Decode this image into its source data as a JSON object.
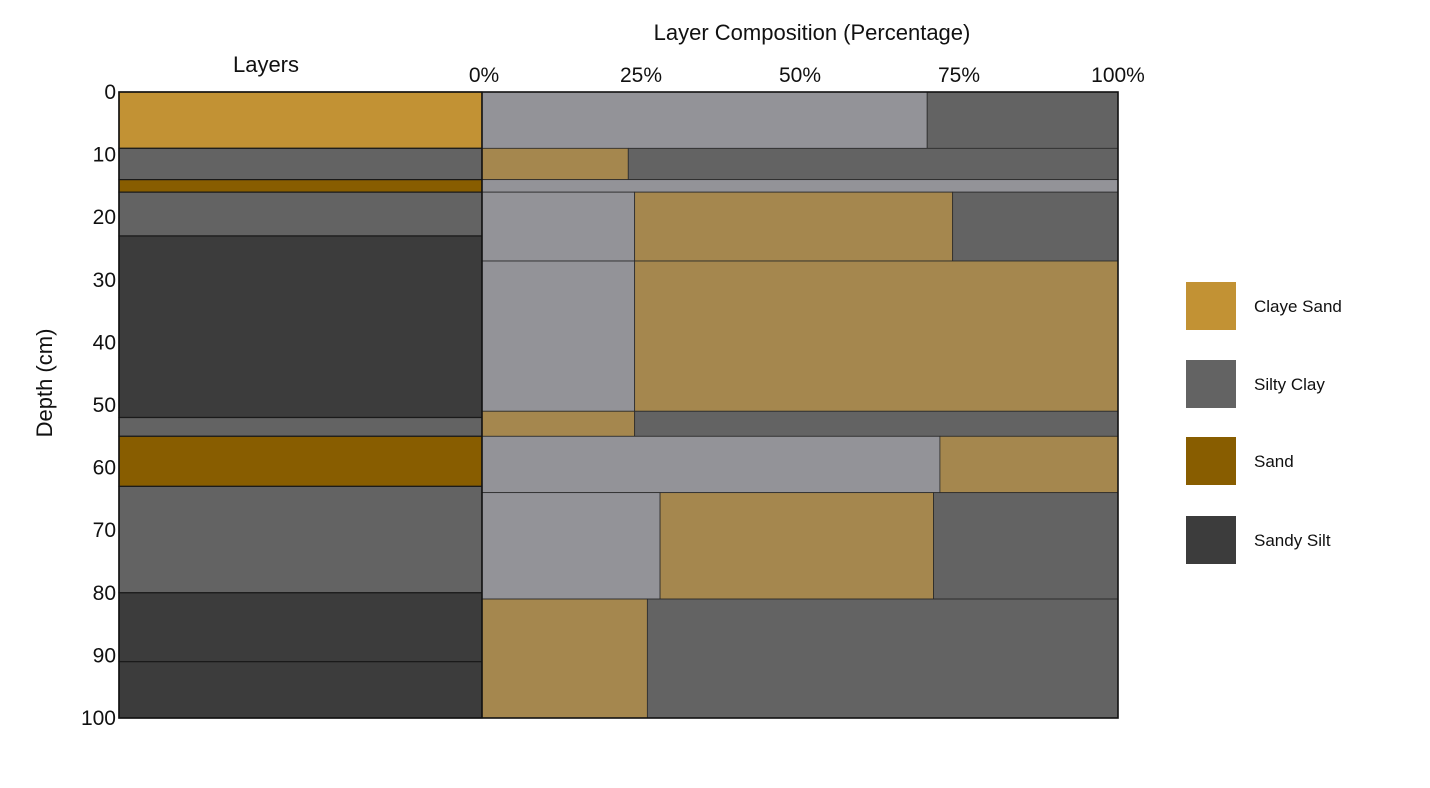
{
  "title": "Layer Composition (Percentage)",
  "layers_heading": "Layers",
  "y_axis_label": "Depth (cm)",
  "x_ticks": [
    "0%",
    "25%",
    "50%",
    "75%",
    "100%"
  ],
  "depth_ticks": [
    0,
    10,
    20,
    30,
    40,
    50,
    60,
    70,
    80,
    90,
    100
  ],
  "depth_range": [
    0,
    100
  ],
  "percent_range": [
    0,
    100
  ],
  "colors": {
    "claye_sand": "#c29234",
    "claye_sand_fill": "#a5874e",
    "silty_clay": "#636363",
    "silty_clay_light": "#939398",
    "sand": "#885d00",
    "sandy_silt": "#3c3c3c"
  },
  "legend": [
    {
      "key": "claye_sand",
      "label": "Claye Sand"
    },
    {
      "key": "silty_clay",
      "label": "Silty Clay"
    },
    {
      "key": "sand",
      "label": "Sand"
    },
    {
      "key": "sandy_silt",
      "label": "Sandy Silt"
    }
  ],
  "layers": [
    {
      "top": 0,
      "bottom": 9,
      "type": "claye_sand"
    },
    {
      "top": 9,
      "bottom": 14,
      "type": "silty_clay"
    },
    {
      "top": 14,
      "bottom": 16,
      "type": "sand"
    },
    {
      "top": 16,
      "bottom": 23,
      "type": "silty_clay"
    },
    {
      "top": 23,
      "bottom": 52,
      "type": "sandy_silt"
    },
    {
      "top": 52,
      "bottom": 55,
      "type": "silty_clay"
    },
    {
      "top": 55,
      "bottom": 63,
      "type": "sand"
    },
    {
      "top": 63,
      "bottom": 80,
      "type": "silty_clay"
    },
    {
      "top": 80,
      "bottom": 91,
      "type": "sandy_silt"
    },
    {
      "top": 91,
      "bottom": 100,
      "type": "sandy_silt"
    }
  ],
  "composition": [
    {
      "top": 0,
      "bottom": 9,
      "parts": [
        {
          "type": "silty_clay_light",
          "pct": 70
        },
        {
          "type": "silty_clay",
          "pct": 30
        }
      ]
    },
    {
      "top": 9,
      "bottom": 14,
      "parts": [
        {
          "type": "claye_sand_fill",
          "pct": 23
        },
        {
          "type": "silty_clay",
          "pct": 77
        }
      ]
    },
    {
      "top": 14,
      "bottom": 16,
      "parts": [
        {
          "type": "silty_clay_light",
          "pct": 100
        }
      ]
    },
    {
      "top": 16,
      "bottom": 27,
      "parts": [
        {
          "type": "silty_clay_light",
          "pct": 24
        },
        {
          "type": "claye_sand_fill",
          "pct": 50
        },
        {
          "type": "silty_clay",
          "pct": 26
        }
      ]
    },
    {
      "top": 27,
      "bottom": 51,
      "parts": [
        {
          "type": "silty_clay_light",
          "pct": 24
        },
        {
          "type": "claye_sand_fill",
          "pct": 76
        }
      ]
    },
    {
      "top": 51,
      "bottom": 55,
      "parts": [
        {
          "type": "claye_sand_fill",
          "pct": 24
        },
        {
          "type": "silty_clay",
          "pct": 76
        }
      ]
    },
    {
      "top": 55,
      "bottom": 64,
      "parts": [
        {
          "type": "silty_clay_light",
          "pct": 72
        },
        {
          "type": "claye_sand_fill",
          "pct": 28
        }
      ]
    },
    {
      "top": 64,
      "bottom": 81,
      "parts": [
        {
          "type": "silty_clay_light",
          "pct": 28
        },
        {
          "type": "claye_sand_fill",
          "pct": 43
        },
        {
          "type": "silty_clay",
          "pct": 29
        }
      ]
    },
    {
      "top": 81,
      "bottom": 100,
      "parts": [
        {
          "type": "claye_sand_fill",
          "pct": 26
        },
        {
          "type": "silty_clay",
          "pct": 74
        }
      ]
    }
  ]
}
